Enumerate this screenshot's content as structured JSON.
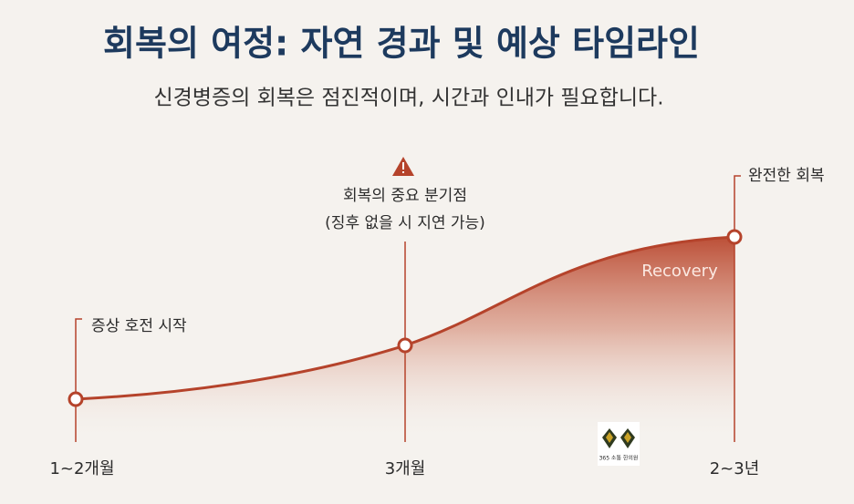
{
  "header": {
    "title": "회복의 여정: 자연 경과 및 예상 타임라인",
    "subtitle": "신경병증의 회복은 점진적이며, 시간과 인내가 필요합니다."
  },
  "milestones": [
    {
      "label": "증상 호전 시작",
      "time": "1~2개월"
    },
    {
      "label": "회복의 중요 분기점",
      "note": "(징후 없을 시 지연 가능)",
      "time": "3개월"
    },
    {
      "label": "완전한 회복",
      "time": "2~3년"
    }
  ],
  "curve_label": "Recovery",
  "logo": "365 소통 한의원"
}
